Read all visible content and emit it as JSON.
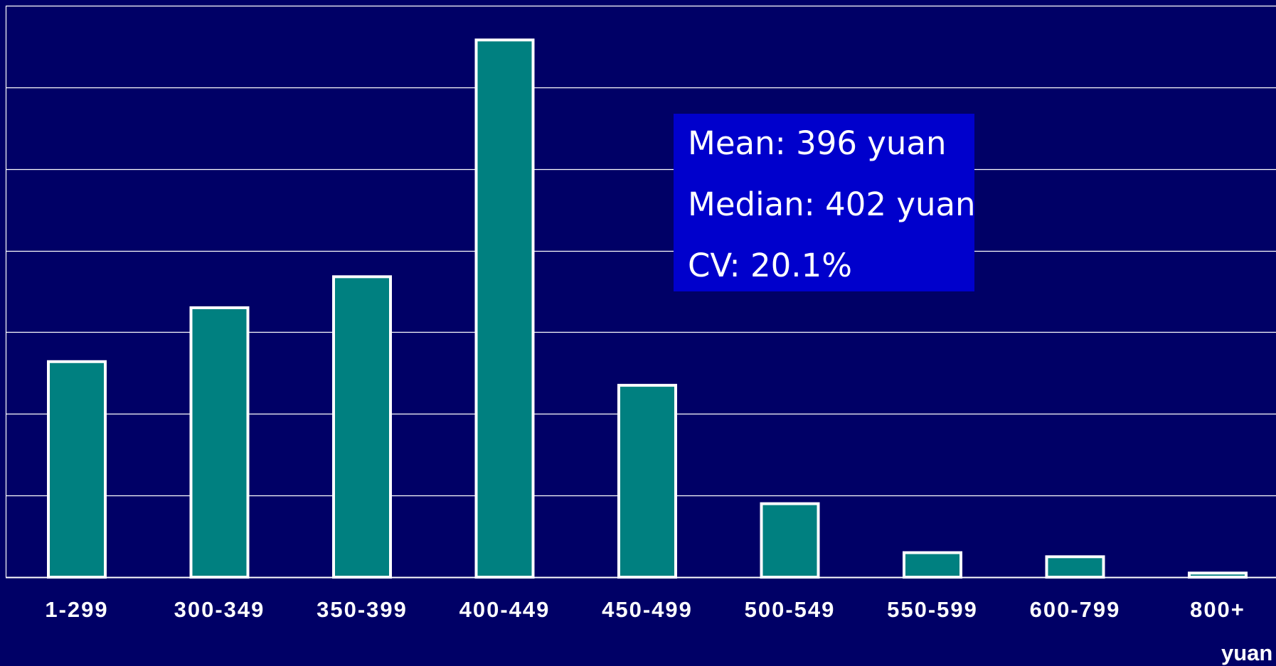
{
  "colors": {
    "background": "#000066",
    "bar_fill": "#008080",
    "bar_stroke": "#ffffff",
    "gridline": "#ffffff",
    "stats_box": "#0000cc",
    "text": "#ffffff"
  },
  "stats": {
    "mean": "Mean: 396 yuan",
    "median": "Median: 402 yuan",
    "cv": "CV: 20.1%"
  },
  "chart_data": {
    "type": "bar",
    "categories": [
      "1-299",
      "300-349",
      "350-399",
      "400-449",
      "450-499",
      "500-549",
      "550-599",
      "600-799",
      "800+"
    ],
    "values": [
      2.64,
      3.3,
      3.68,
      6.58,
      2.35,
      0.9,
      0.3,
      0.25,
      0.05
    ],
    "ylim": [
      0,
      7
    ],
    "grid": true,
    "xlabel": "yuan",
    "ylabel": "",
    "title": ""
  }
}
